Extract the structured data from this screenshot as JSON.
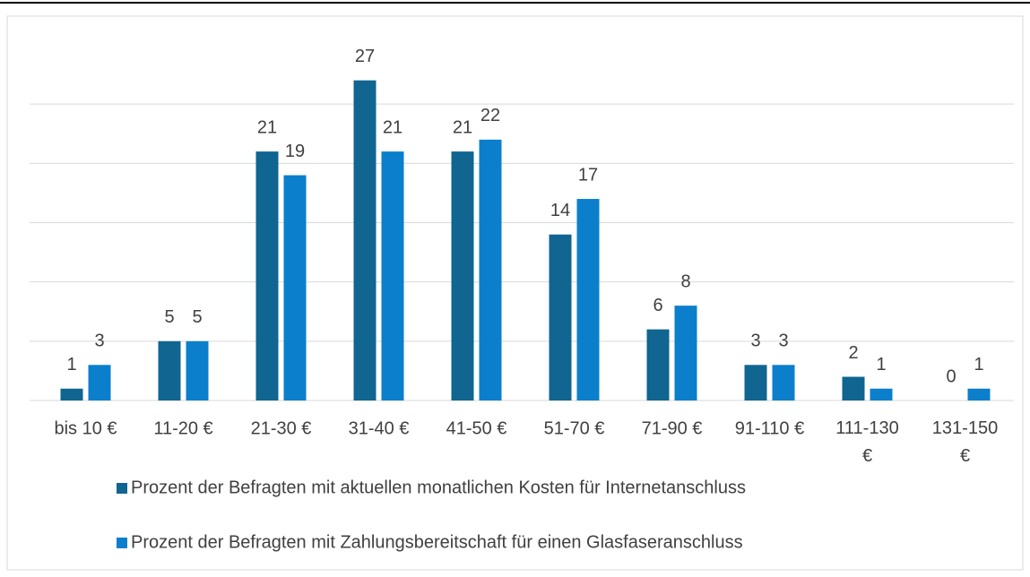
{
  "chart_data": {
    "type": "bar",
    "categories": [
      "bis 10 €",
      "11-20 €",
      "21-30 €",
      "31-40 €",
      "41-50 €",
      "51-70 €",
      "71-90 €",
      "91-110 €",
      "111-130 €",
      "131-150 €"
    ],
    "series": [
      {
        "name": "Prozent der Befragten mit aktuellen monatlichen Kosten für Internetanschluss",
        "color": "#106591",
        "values": [
          1,
          5,
          21,
          27,
          21,
          14,
          6,
          3,
          2,
          0
        ]
      },
      {
        "name": "Prozent der Befragten mit Zahlungsbereitschaft für einen Glasfaseranschluss",
        "color": "#0b7fcc",
        "values": [
          3,
          5,
          19,
          21,
          22,
          17,
          8,
          3,
          1,
          1
        ]
      }
    ],
    "ylim": [
      0,
      30
    ],
    "yticks": [
      0,
      5,
      10,
      15,
      20,
      25
    ],
    "grid": true,
    "legend": "bottom"
  }
}
